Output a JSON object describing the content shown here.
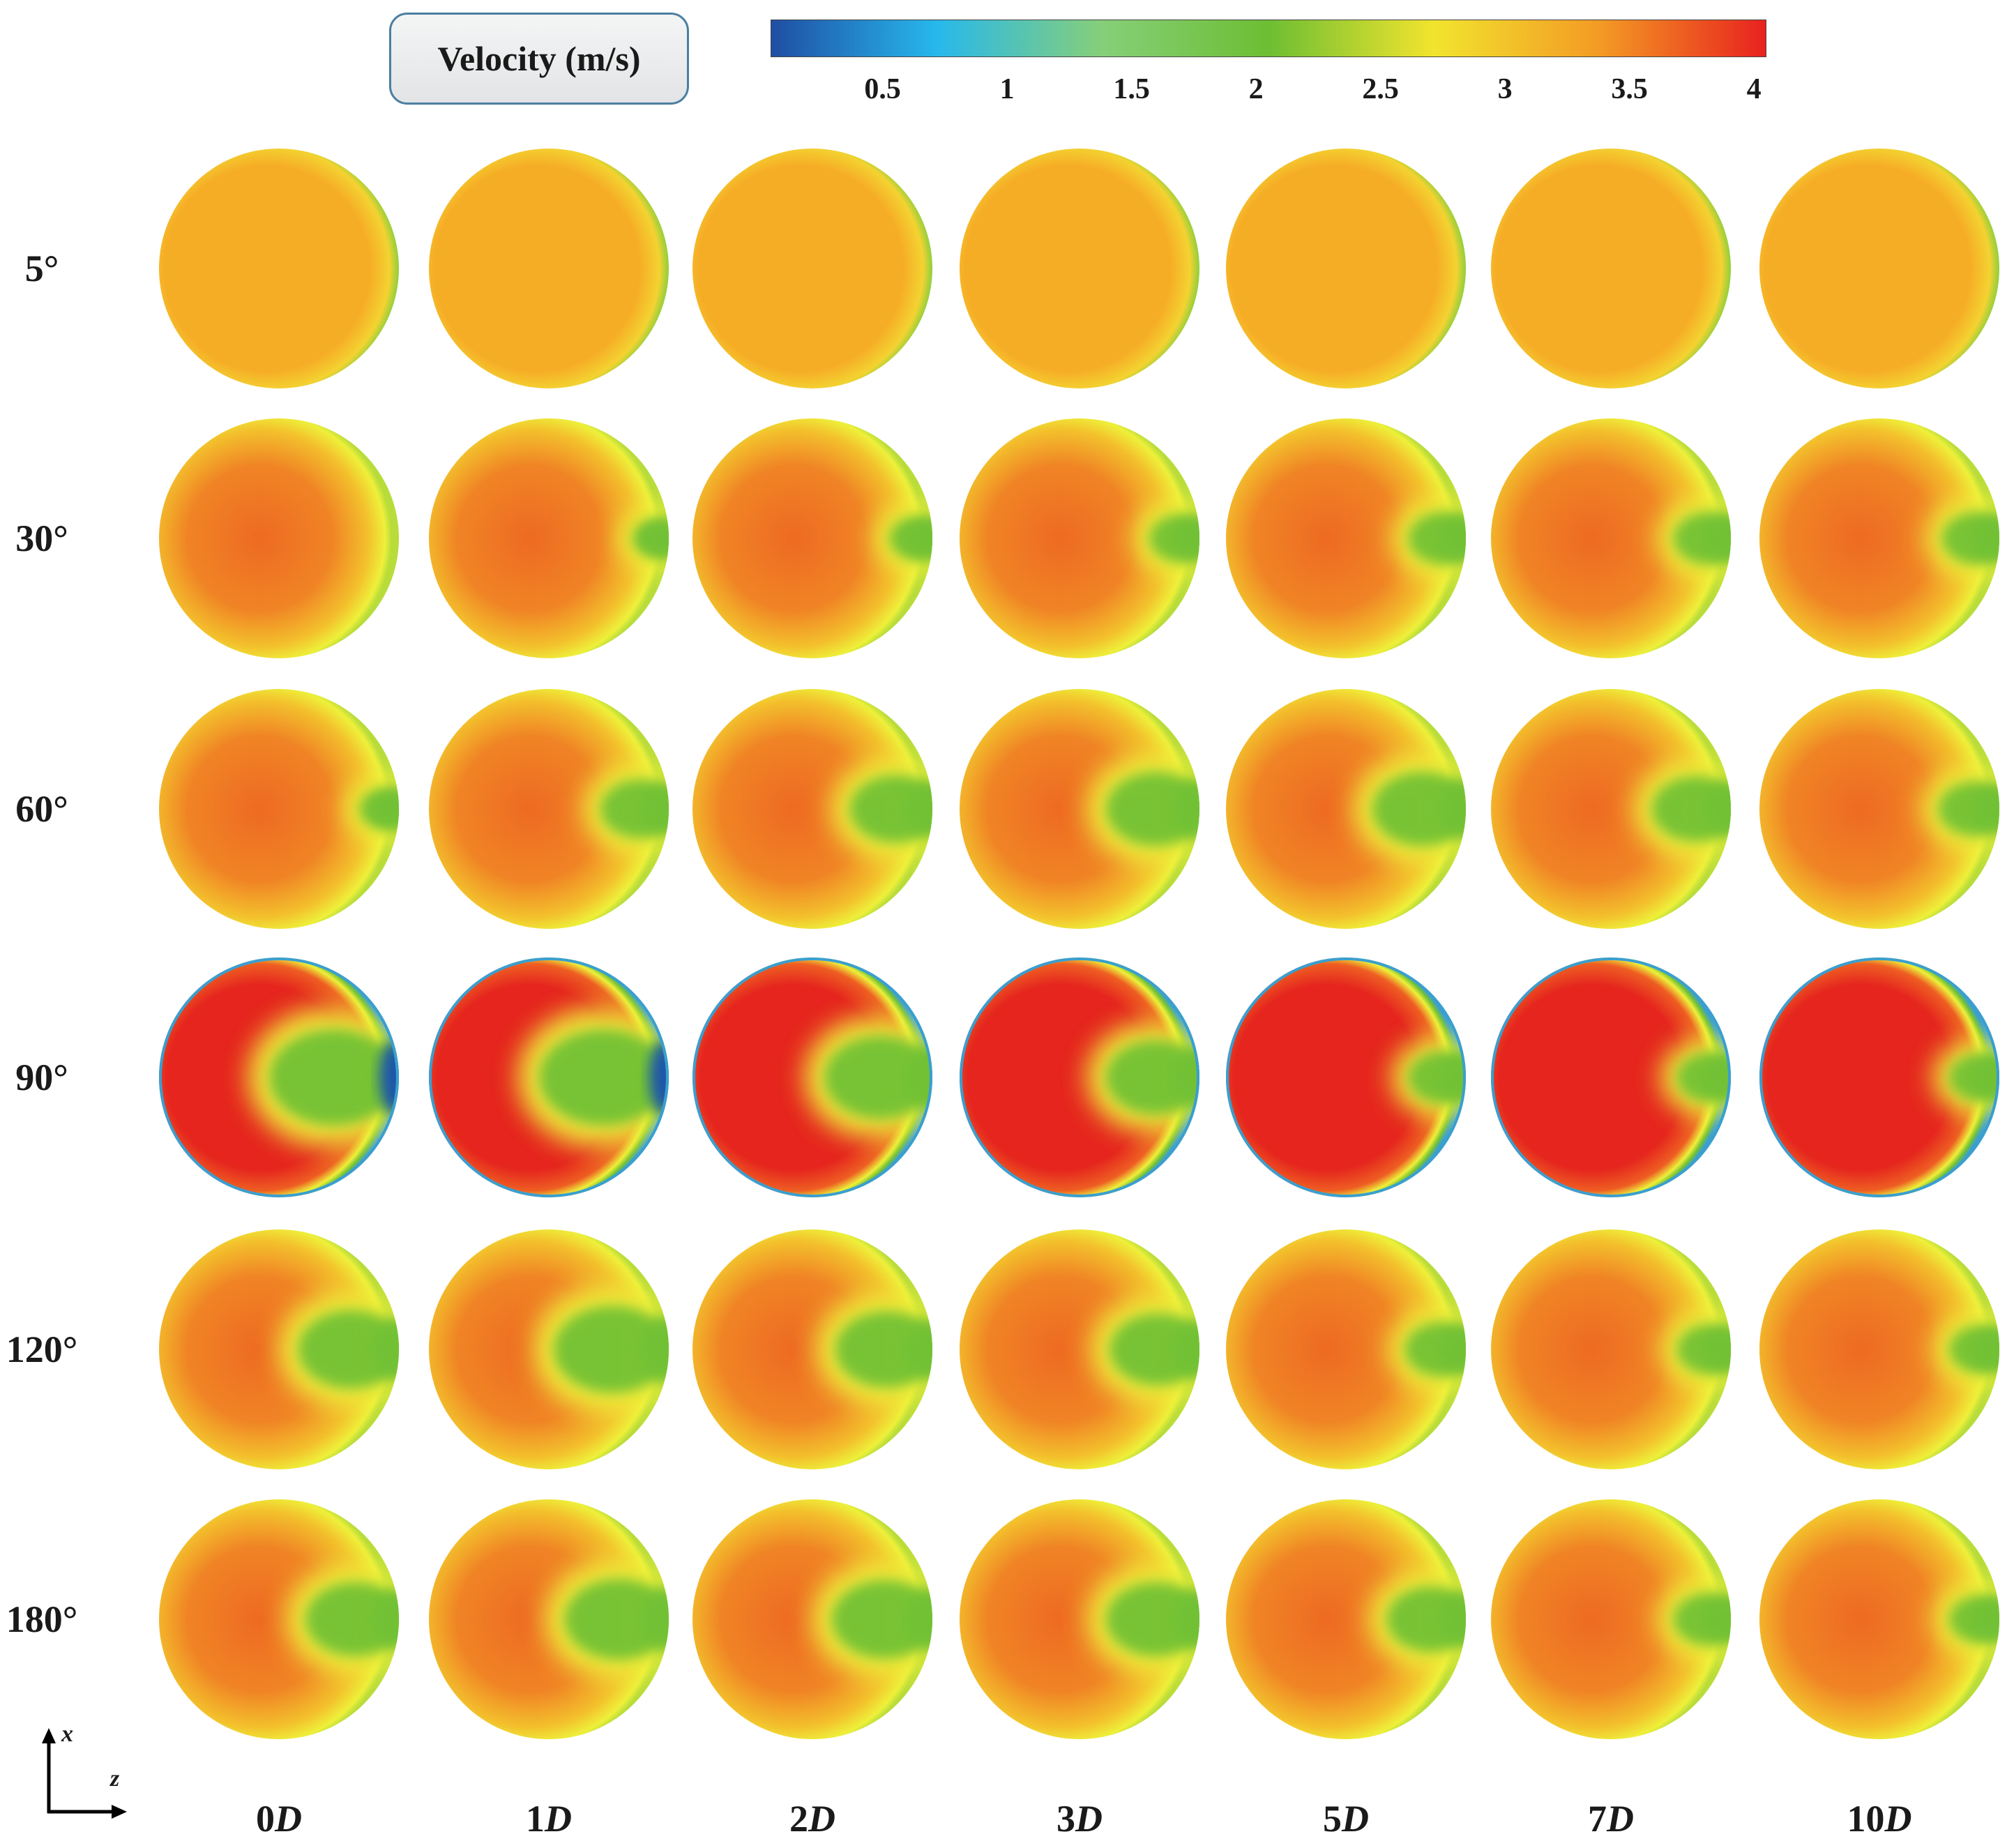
{
  "title": "Velocity (m/s)",
  "colorbar": {
    "stops": [
      "#1f4ea3",
      "#27b8ec",
      "#86cf79",
      "#6dbe33",
      "#f2e42e",
      "#f39a24",
      "#e8221f"
    ],
    "ticks": [
      "0.5",
      "1",
      "1.5",
      "2",
      "2.5",
      "3",
      "3.5",
      "4"
    ],
    "tick_values": [
      0.5,
      1,
      1.5,
      2,
      2.5,
      3,
      3.5,
      4
    ],
    "range": [
      0.05,
      4.05
    ]
  },
  "rows": [
    "5°",
    "30°",
    "60°",
    "90°",
    "120°",
    "180°"
  ],
  "columns": [
    {
      "num": "0",
      "unit": "D"
    },
    {
      "num": "1",
      "unit": "D"
    },
    {
      "num": "2",
      "unit": "D"
    },
    {
      "num": "3",
      "unit": "D"
    },
    {
      "num": "5",
      "unit": "D"
    },
    {
      "num": "7",
      "unit": "D"
    },
    {
      "num": "10",
      "unit": "D"
    }
  ],
  "axes": {
    "vertical": "x",
    "horizontal": "z"
  },
  "colors": {
    "wall": "#eef03a",
    "core_orange": "#f6ad26",
    "core_dark": "#ee6a22",
    "core_red": "#e5251e",
    "lobe_green": "#72c134",
    "edge_green": "#8fcf3c",
    "low_blue": "#1b56a8",
    "ring_blue": "#3a9fd0"
  }
}
